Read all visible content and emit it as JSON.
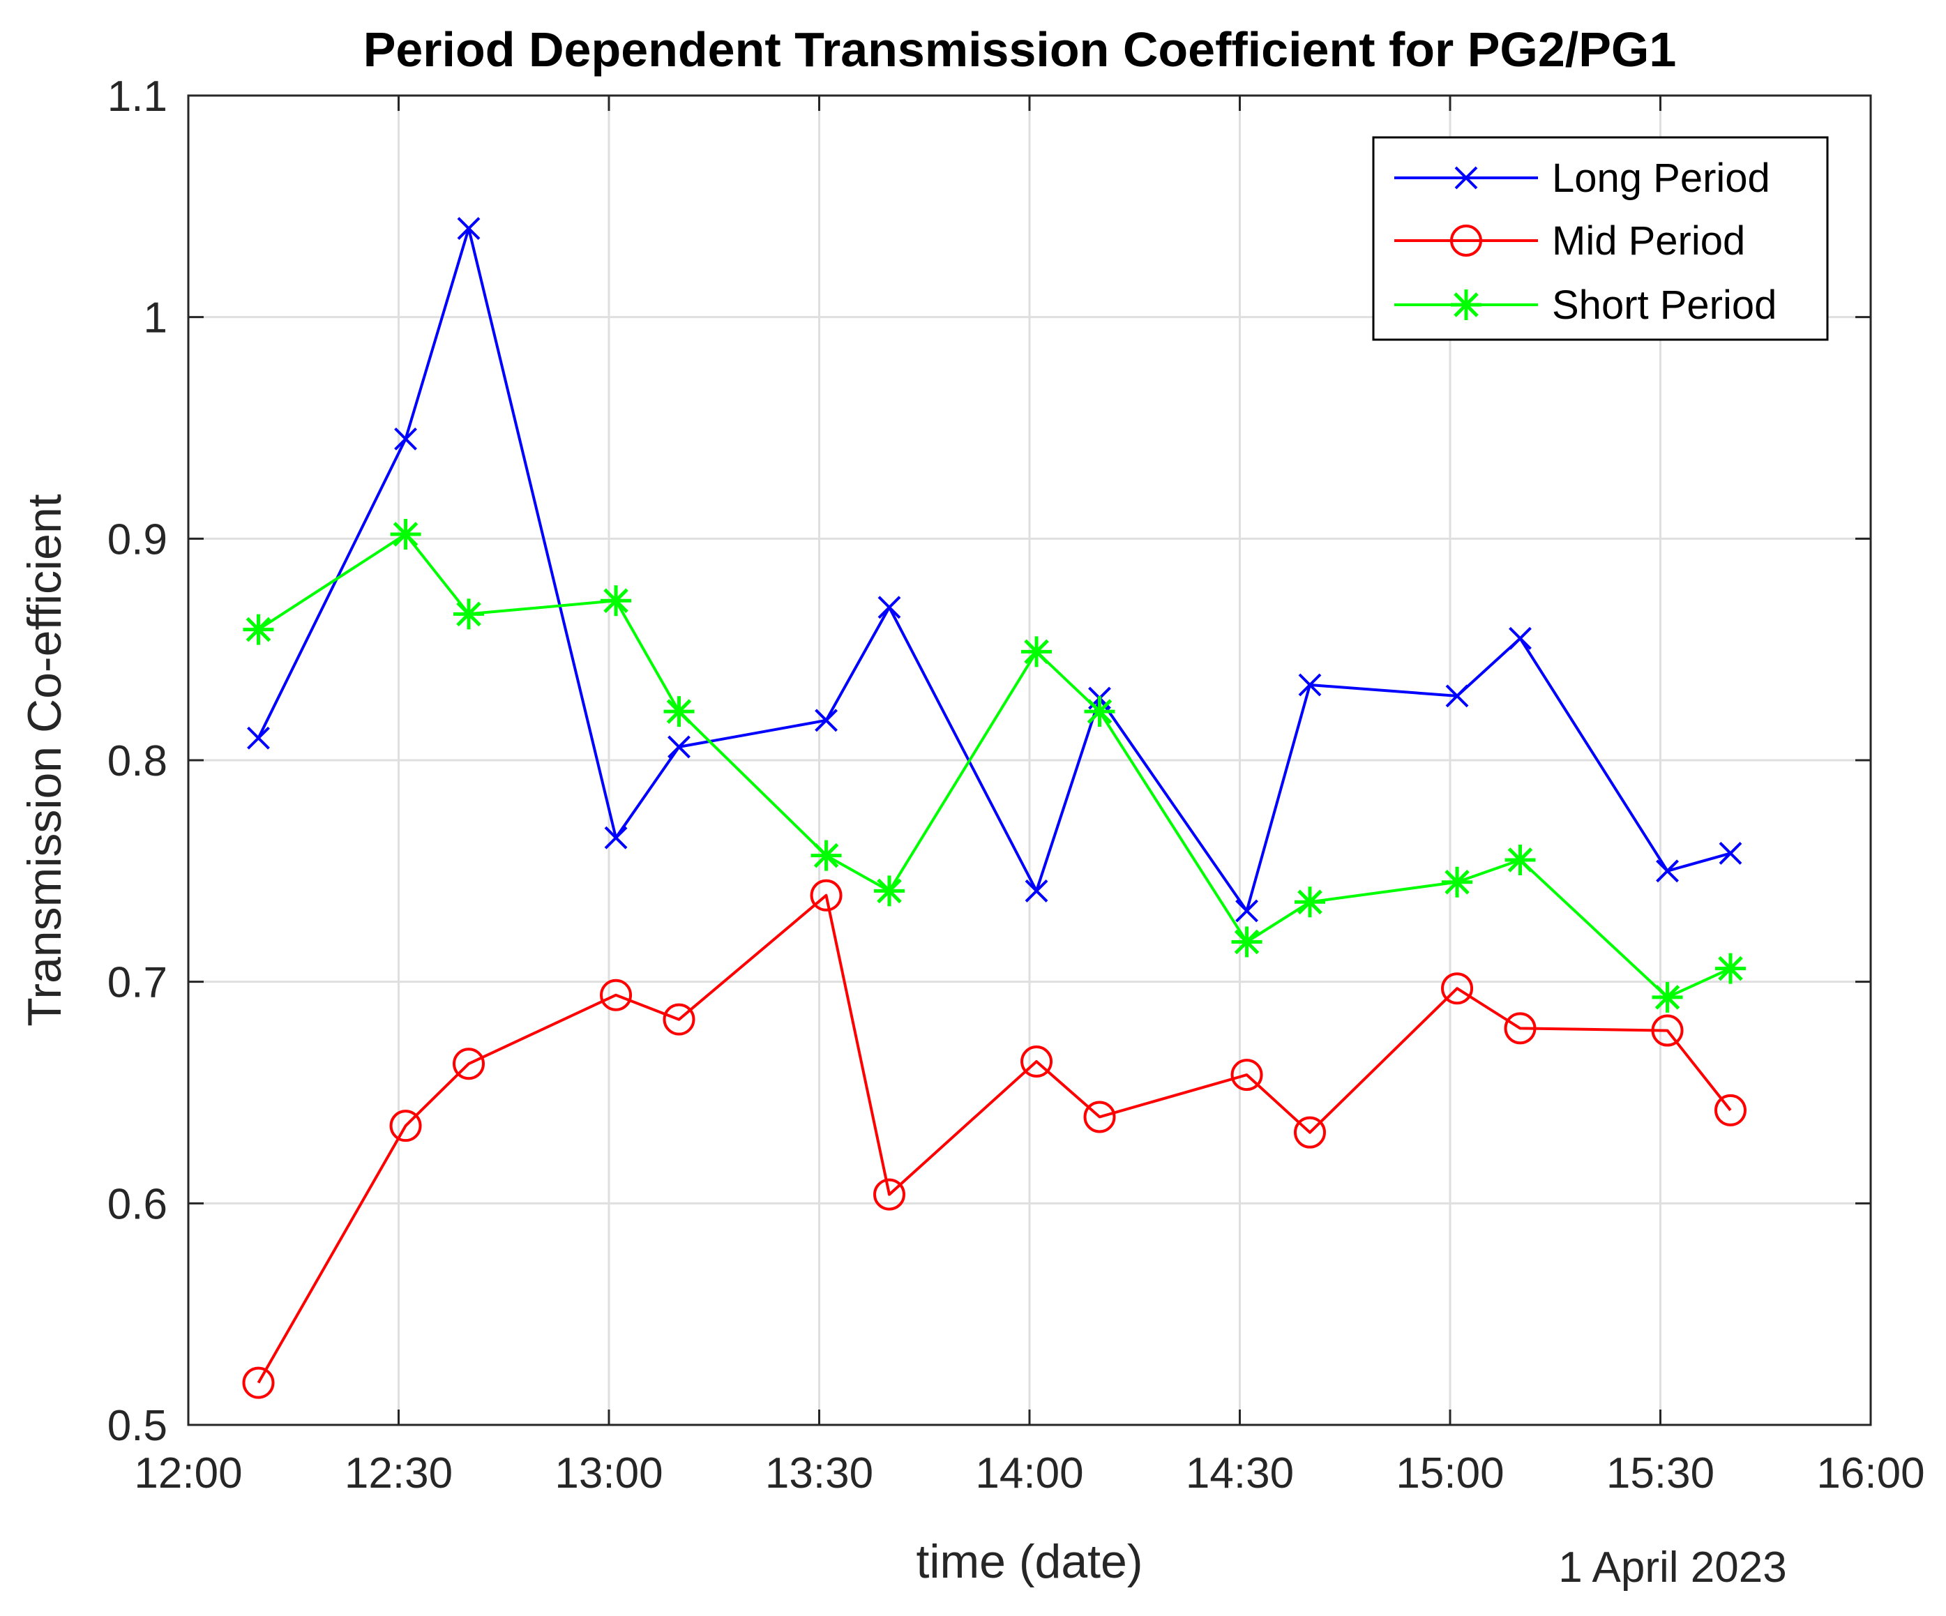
{
  "chart_data": {
    "type": "line",
    "title": "Period Dependent Transmission Coefficient for PG2/PG1",
    "xlabel": "time (date)",
    "ylabel": "Transmission Co-efficient",
    "date_note": "1 April 2023",
    "xlim": [
      "12:00",
      "16:00"
    ],
    "ylim": [
      0.5,
      1.1
    ],
    "x_ticks": [
      "12:00",
      "12:30",
      "13:00",
      "13:30",
      "14:00",
      "14:30",
      "15:00",
      "15:30",
      "16:00"
    ],
    "y_ticks": [
      "0.5",
      "0.6",
      "0.7",
      "0.8",
      "0.9",
      "1",
      "1.1"
    ],
    "grid": true,
    "legend_position": "top-right",
    "x": [
      "12:10",
      "12:31",
      "12:40",
      "13:01",
      "13:10",
      "13:31",
      "13:40",
      "14:01",
      "14:10",
      "14:31",
      "14:40",
      "15:01",
      "15:10",
      "15:31",
      "15:40"
    ],
    "series": [
      {
        "name": "Long Period",
        "color": "#0000ff",
        "marker": "x",
        "values": [
          0.81,
          0.945,
          1.04,
          0.765,
          0.806,
          0.818,
          0.869,
          0.741,
          0.828,
          0.732,
          0.834,
          0.829,
          0.855,
          0.75,
          0.758
        ]
      },
      {
        "name": "Mid Period",
        "color": "#ff0000",
        "marker": "o",
        "values": [
          0.519,
          0.635,
          0.663,
          0.694,
          0.683,
          0.739,
          0.604,
          0.664,
          0.639,
          0.658,
          0.632,
          0.697,
          0.679,
          0.678,
          0.642
        ]
      },
      {
        "name": "Short Period",
        "color": "#00ff00",
        "marker": "*",
        "values": [
          0.859,
          0.902,
          0.866,
          0.872,
          0.822,
          0.757,
          0.741,
          0.849,
          0.822,
          0.718,
          0.736,
          0.745,
          0.755,
          0.693,
          0.706
        ]
      }
    ]
  }
}
